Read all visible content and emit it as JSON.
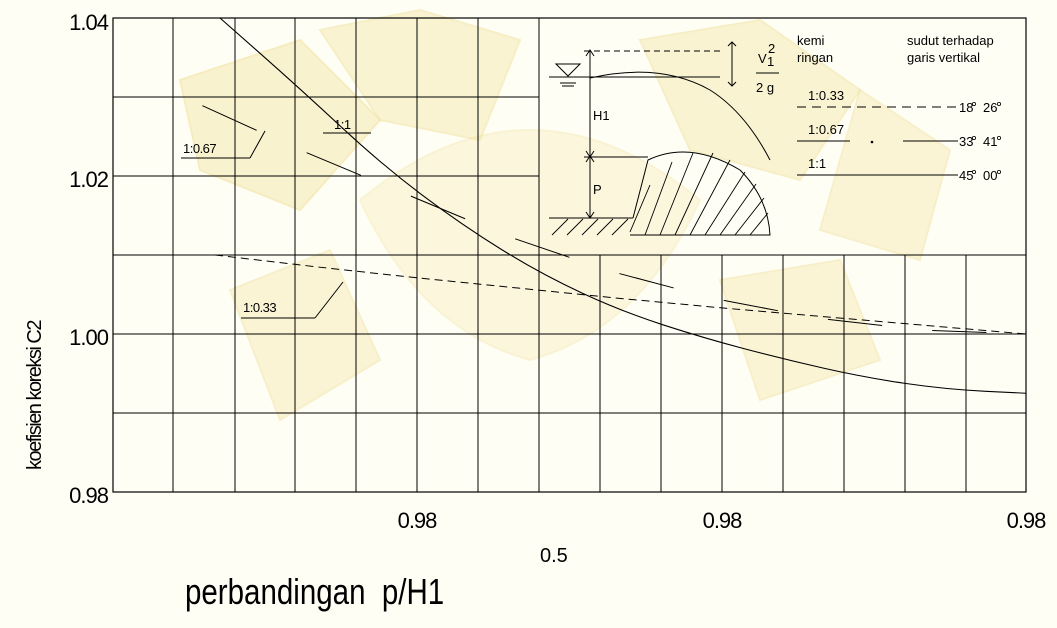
{
  "colors": {
    "background": "#fffef5",
    "watermark": "#f3e6a6",
    "ink": "#000000"
  },
  "chart_data": {
    "type": "line",
    "xlabel": "perbandingan  p/H1",
    "xlabel_exponent": "0.5",
    "ylabel": "koefisien koreksi C2",
    "yticks": [
      "1.04",
      "1.02",
      "1.00",
      "0.98"
    ],
    "xticks": [
      "0.98",
      "0.98",
      "0.98"
    ],
    "ylim": [
      0.98,
      1.04
    ],
    "grid": true,
    "series": [
      {
        "name": "1:1",
        "style": "solid",
        "y": [
          1.04,
          1.031,
          1.0215,
          1.0138,
          1.0075,
          1.0028,
          0.9995,
          0.9968,
          0.9945,
          0.993,
          0.9925
        ]
      },
      {
        "name": "1:0.67",
        "style": "dash-segments",
        "y": [
          1.0295,
          1.0235,
          1.018,
          1.0125,
          1.008,
          1.0045,
          1.002,
          1.0005,
          1.0
        ]
      },
      {
        "name": "1:0.33",
        "style": "dashed",
        "y": [
          1.01,
          1.0085,
          1.0071,
          1.0058,
          1.0045,
          1.0033,
          1.0022,
          1.0011,
          1.0
        ]
      }
    ],
    "curve_labels": [
      "1:1",
      "1:0.67",
      "1:0.33"
    ],
    "inset": {
      "velocity_numerator": "V",
      "velocity_subscript": "1",
      "velocity_superscript": "2",
      "velocity_denominator": "2 g",
      "h1_label": "H1",
      "p_label": "P"
    },
    "legend": {
      "header_left_line1": "kemi",
      "header_left_line2": "ringan",
      "header_right_line1": "sudut terhadap",
      "header_right_line2": "garis vertikal",
      "rows": [
        {
          "slope": "1:0.33",
          "angle_deg": "18",
          "angle_min": "26"
        },
        {
          "slope": "1:0.67",
          "angle_deg": "33",
          "angle_min": "41"
        },
        {
          "slope": "1:1",
          "angle_deg": "45",
          "angle_min": "00"
        }
      ]
    }
  }
}
